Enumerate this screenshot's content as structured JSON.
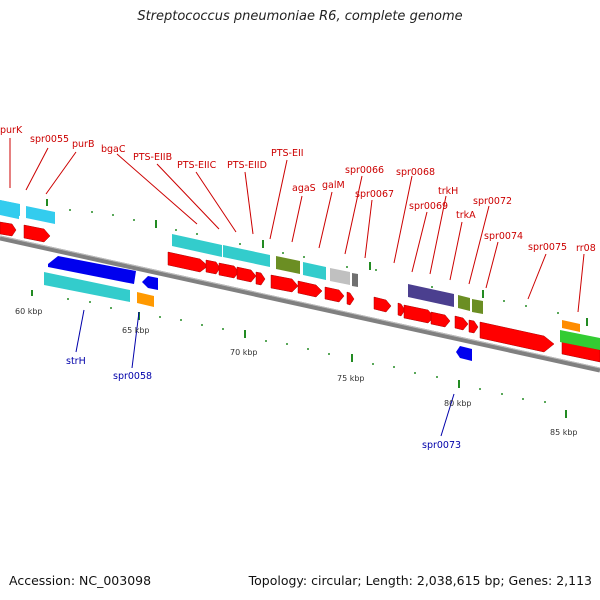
{
  "title": "Streptococcus pneumoniae R6, complete genome",
  "footer": {
    "accession": "Accession: NC_003098",
    "summary": "Topology: circular; Length: 2,038,615 bp; Genes: 2,113"
  },
  "colors": {
    "label_forward": "#cc0000",
    "label_reverse": "#0000aa",
    "backbone": "#808080",
    "tick": "#228b22"
  },
  "scale_labels": [
    "60 kbp",
    "65 kbp",
    "70 kbp",
    "75 kbp",
    "80 kbp",
    "85 kbp"
  ],
  "forward_labels": [
    "purK",
    "spr0055",
    "purB",
    "bgaC",
    "PTS-EIIB",
    "PTS-EIIC",
    "PTS-EIID",
    "PTS-EII",
    "agaS",
    "galM",
    "spr0066",
    "spr0067",
    "spr0068",
    "spr0069",
    "trkH",
    "trkA",
    "spr0072",
    "spr0074",
    "spr0075",
    "rr08"
  ],
  "reverse_labels": [
    "strH",
    "spr0058",
    "spr0073"
  ]
}
